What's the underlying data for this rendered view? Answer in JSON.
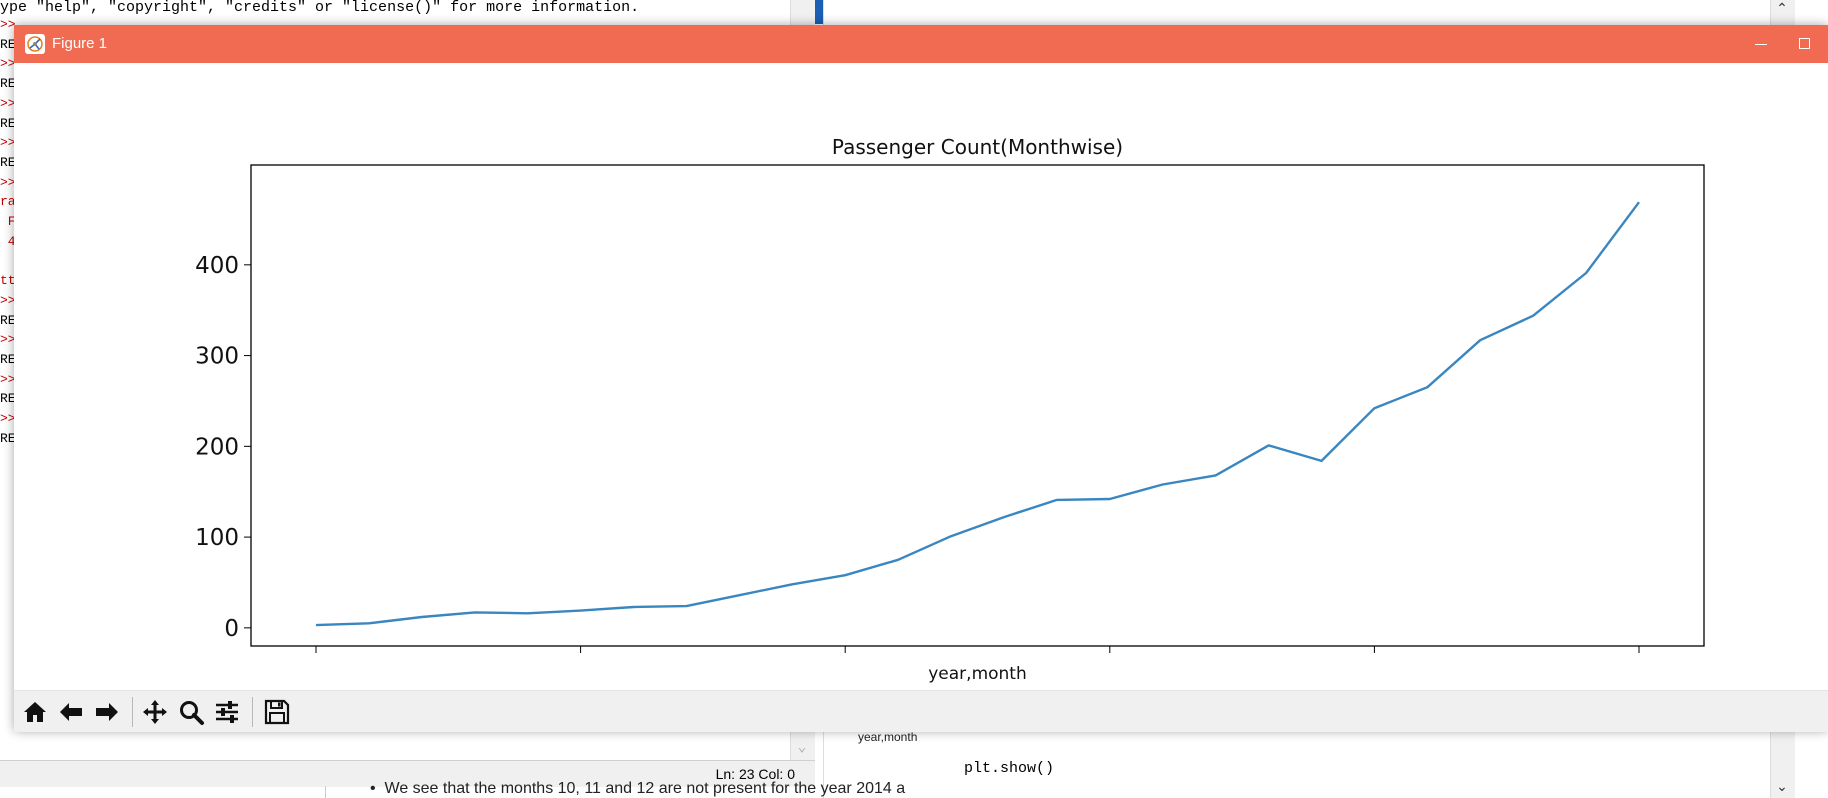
{
  "shell": {
    "banner": "ype \"help\", \"copyright\", \"credits\" or \"license()\" for more information.",
    "fragments": [
      {
        "text": ">>",
        "color": "red"
      },
      {
        "text": "RE",
        "color": "black"
      },
      {
        "text": ">>",
        "color": "red"
      },
      {
        "text": "RE",
        "color": "black"
      },
      {
        "text": ">>",
        "color": "red"
      },
      {
        "text": "RE",
        "color": "black"
      },
      {
        "text": ">>",
        "color": "red"
      },
      {
        "text": "RE",
        "color": "black"
      },
      {
        "text": ">>",
        "color": "red"
      },
      {
        "text": "ra",
        "color": "red"
      },
      {
        "text": " F",
        "color": "red"
      },
      {
        "text": " 4",
        "color": "red"
      },
      {
        "text": "",
        "color": "black"
      },
      {
        "text": "tt",
        "color": "red"
      },
      {
        "text": ">>",
        "color": "red"
      },
      {
        "text": "RE",
        "color": "black"
      },
      {
        "text": ">>",
        "color": "red"
      },
      {
        "text": "RE",
        "color": "black"
      },
      {
        "text": ">>",
        "color": "red"
      },
      {
        "text": "RE",
        "color": "black"
      },
      {
        "text": ">>",
        "color": "red"
      },
      {
        "text": "RE",
        "color": "black"
      }
    ],
    "status": "Ln: 23  Col: 0"
  },
  "notebook": {
    "mini_xlabel": "year,month",
    "code_line": "plt.show()",
    "bullet_text": "We see that the months 10, 11 and 12 are not present for the year 2014 a"
  },
  "figure": {
    "window_title": "Figure 1",
    "accent_color": "#f06b51",
    "line_color": "#3a86c0",
    "toolbar": [
      {
        "name": "home-icon",
        "label": "Home"
      },
      {
        "name": "back-arrow-icon",
        "label": "Back"
      },
      {
        "name": "forward-arrow-icon",
        "label": "Forward"
      },
      {
        "name": "pan-icon",
        "label": "Pan"
      },
      {
        "name": "zoom-icon",
        "label": "Zoom"
      },
      {
        "name": "configure-subplots-icon",
        "label": "Subplots"
      },
      {
        "name": "save-icon",
        "label": "Save"
      }
    ]
  },
  "chart_data": {
    "type": "line",
    "title": "Passenger Count(Monthwise)",
    "xlabel": "year,month",
    "ylabel": "",
    "ylim": [
      -20,
      510
    ],
    "yticks": [
      0,
      100,
      200,
      300,
      400
    ],
    "x_count": 26,
    "xticks_at": [
      0,
      5,
      10,
      15,
      20,
      25
    ],
    "grid": false,
    "series": [
      {
        "values": [
          3,
          5,
          12,
          17,
          16,
          19,
          23,
          24,
          36,
          48,
          58,
          75,
          101,
          122,
          141,
          142,
          158,
          168,
          201,
          184,
          242,
          265,
          317,
          344,
          391,
          469
        ]
      }
    ]
  }
}
